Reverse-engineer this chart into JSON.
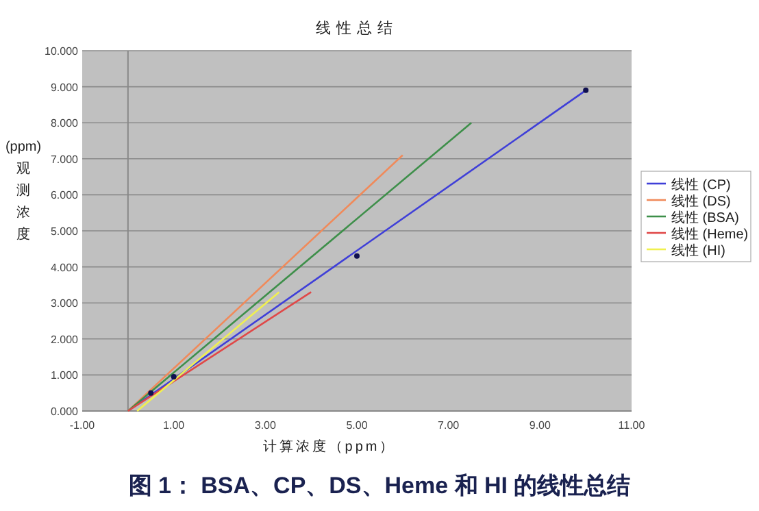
{
  "chart_data": {
    "type": "line",
    "title": "线性总结",
    "xlabel": "计算浓度（ppm）",
    "ylabel": "(ppm)观测浓度",
    "xlim": [
      -1,
      11
    ],
    "ylim": [
      0,
      10
    ],
    "xticks": [
      {
        "value": -1,
        "label": "-1.00"
      },
      {
        "value": 1,
        "label": "1.00"
      },
      {
        "value": 3,
        "label": "3.00"
      },
      {
        "value": 5,
        "label": "5.00"
      },
      {
        "value": 7,
        "label": "7.00"
      },
      {
        "value": 9,
        "label": "9.00"
      },
      {
        "value": 11,
        "label": "11.00"
      }
    ],
    "yticks": [
      {
        "value": 0,
        "label": "0.000"
      },
      {
        "value": 1,
        "label": "1.000"
      },
      {
        "value": 2,
        "label": "2.000"
      },
      {
        "value": 3,
        "label": "3.000"
      },
      {
        "value": 4,
        "label": "4.000"
      },
      {
        "value": 5,
        "label": "5.000"
      },
      {
        "value": 6,
        "label": "6.000"
      },
      {
        "value": 7,
        "label": "7.000"
      },
      {
        "value": 8,
        "label": "8.000"
      },
      {
        "value": 9,
        "label": "9.000"
      },
      {
        "value": 10,
        "label": "10.000"
      }
    ],
    "grid": "y",
    "legend": "right",
    "marker": "none",
    "line_style": "solid",
    "series": [
      {
        "name": "线性 (CP)",
        "color": "#3f3fd8",
        "x": [
          0,
          10
        ],
        "values": [
          0,
          8.9
        ]
      },
      {
        "name": "线性 (DS)",
        "color": "#f08a5a",
        "x": [
          0,
          6
        ],
        "values": [
          0,
          7.1
        ]
      },
      {
        "name": "线性 (BSA)",
        "color": "#3e8f4a",
        "x": [
          0,
          7.5
        ],
        "values": [
          0,
          8
        ]
      },
      {
        "name": "线性 (Heme)",
        "color": "#e04848",
        "x": [
          0,
          4
        ],
        "values": [
          0,
          3.3
        ]
      },
      {
        "name": "线性 (HI)",
        "color": "#f0f050",
        "x": [
          0.2,
          3.3
        ],
        "values": [
          0,
          3.3
        ]
      },
      {
        "type": "scatter",
        "marker": "circle",
        "color": "#101050",
        "x": [
          0.5,
          1,
          5,
          10
        ],
        "values": [
          0.5,
          0.95,
          4.3,
          8.9
        ]
      }
    ],
    "annotations": [
      "图 1： BSA、CP、DS、Heme 和 HI 的线性总结"
    ]
  }
}
